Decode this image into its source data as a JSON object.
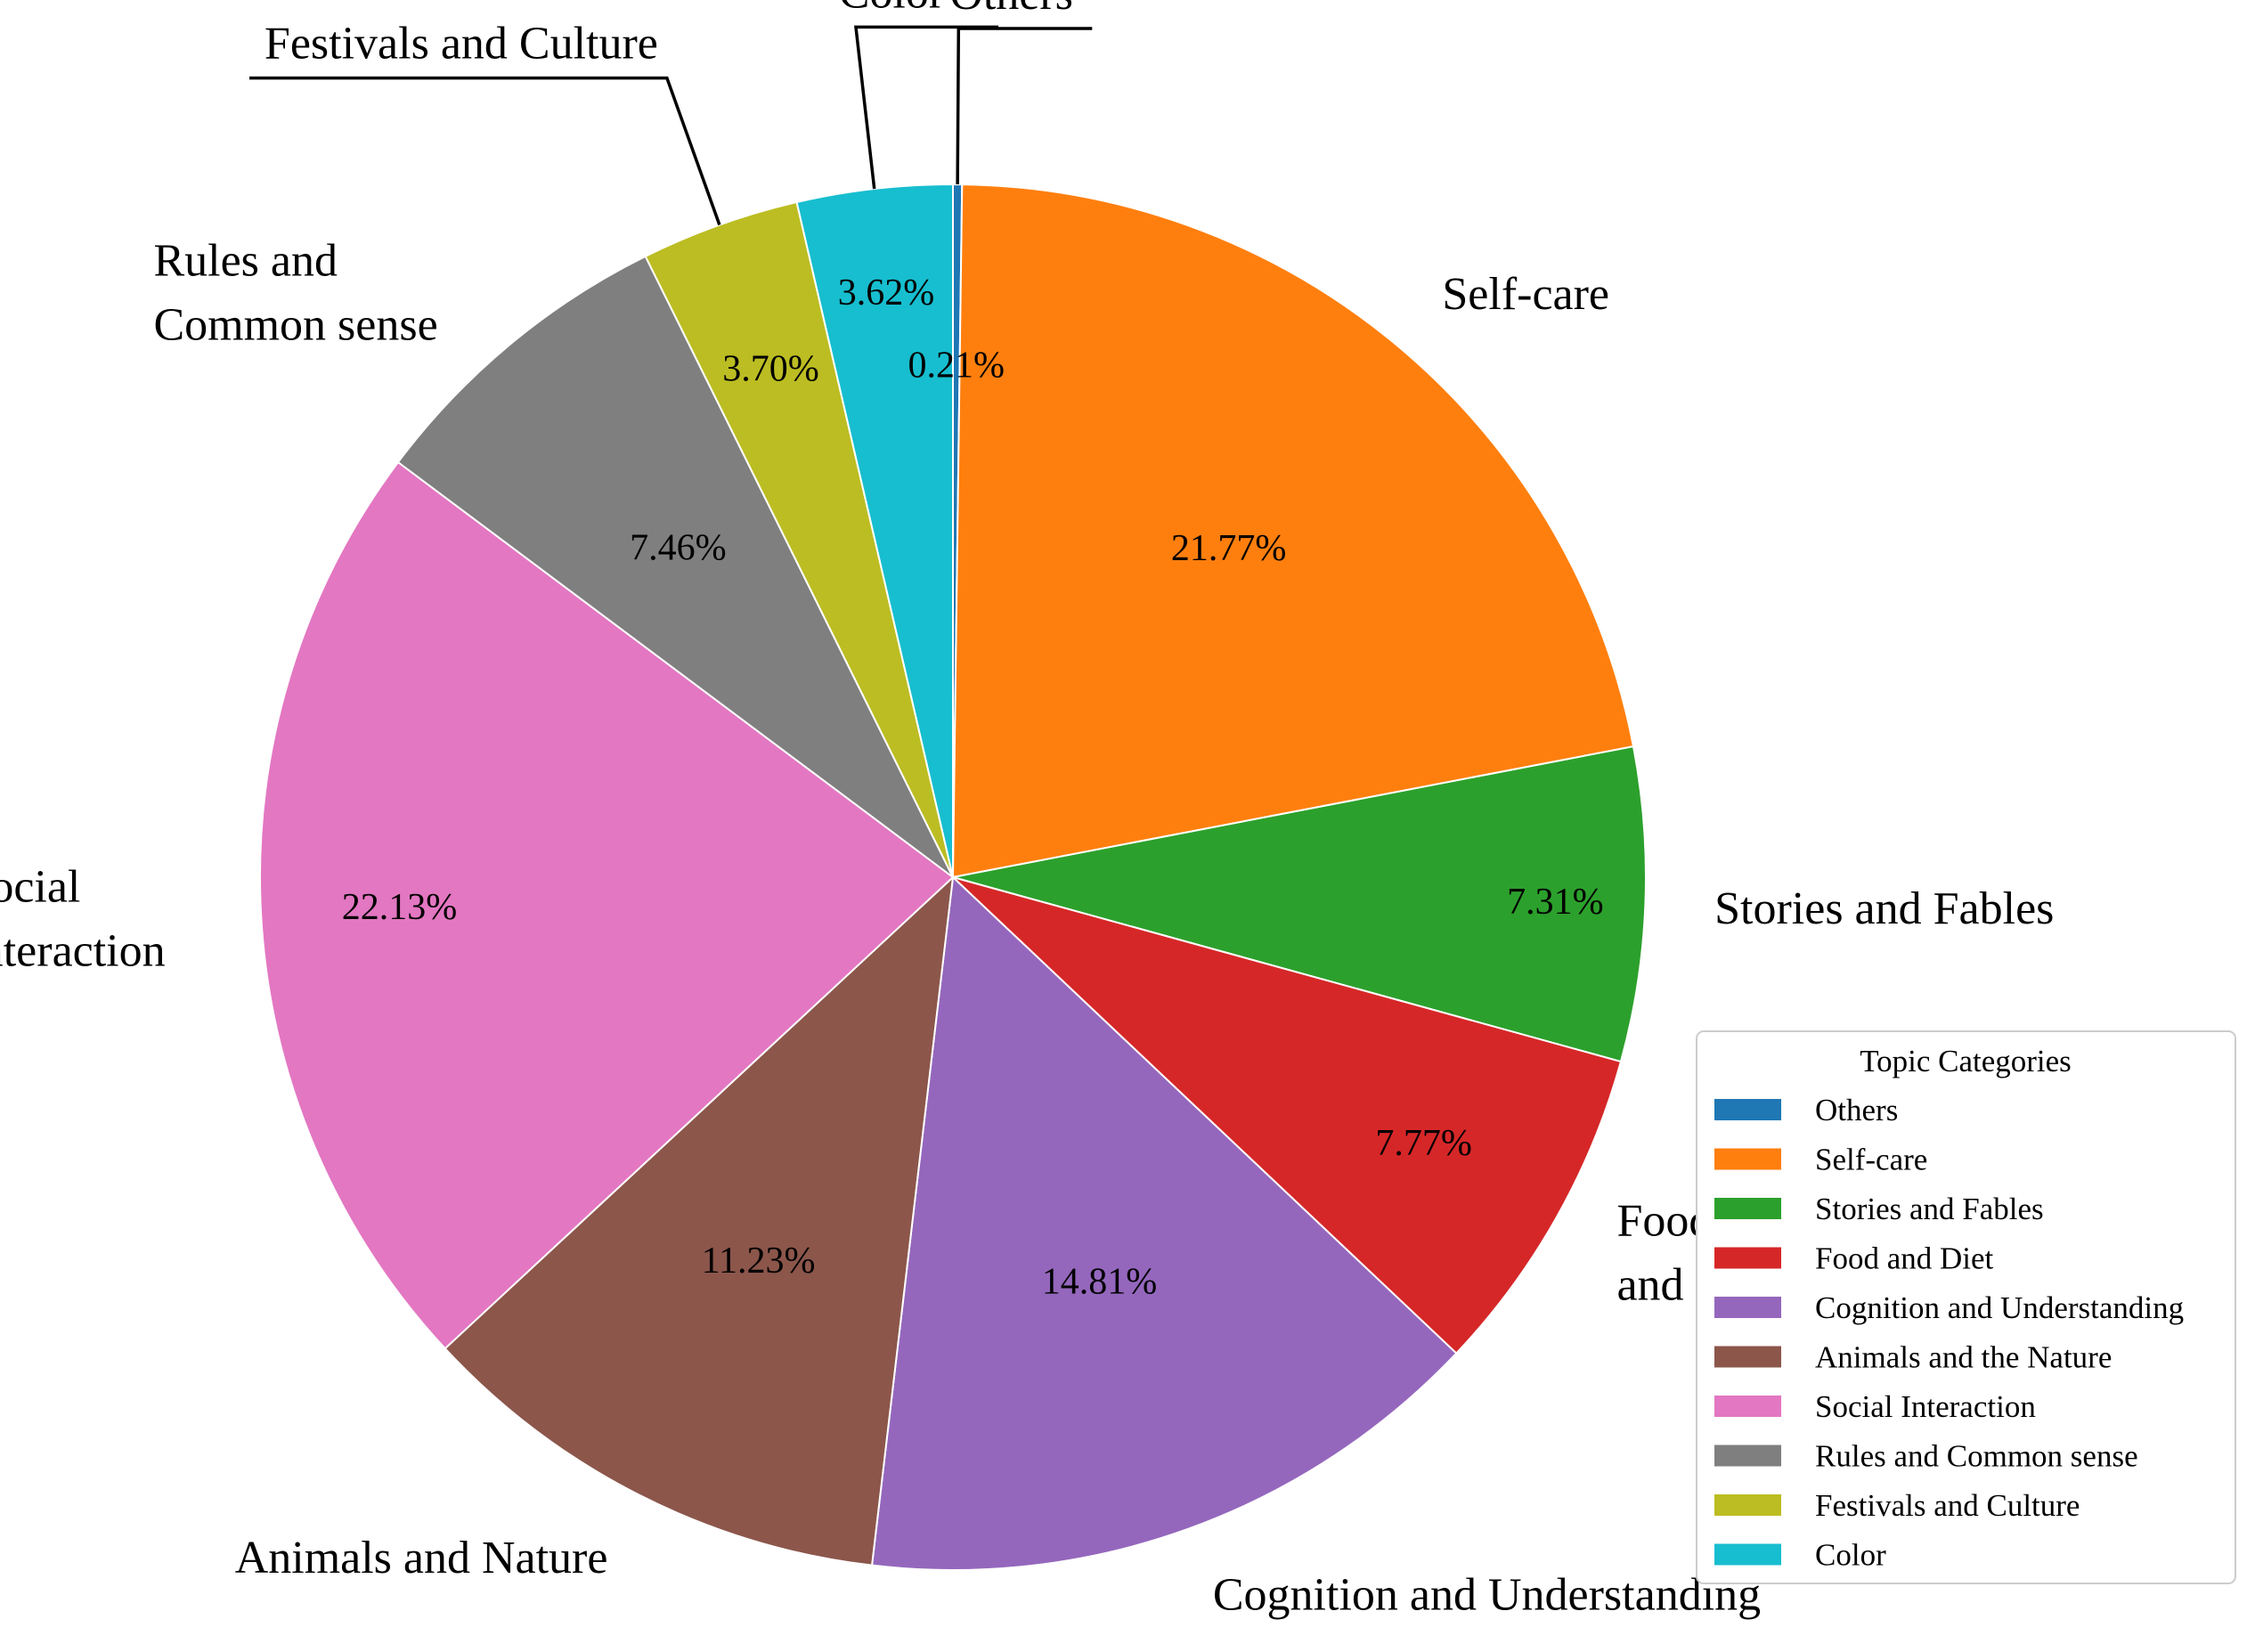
{
  "chart_data": {
    "type": "pie",
    "categories": [
      "Others",
      "Self-care",
      "Stories and Fables",
      "Food and Diet",
      "Cognition and Understanding",
      "Animals and the Nature",
      "Social Interaction",
      "Rules and Common sense",
      "Festivals and Culture",
      "Color"
    ],
    "slice_labels": [
      [
        "Others"
      ],
      [
        "Self-care"
      ],
      [
        "Stories and Fables"
      ],
      [
        "Food",
        "and Diet"
      ],
      [
        "Cognition and Understanding"
      ],
      [
        "Animals and Nature"
      ],
      [
        "Social",
        "Interaction"
      ],
      [
        "Rules and",
        "Common sense"
      ],
      [
        "Festivals and Culture"
      ],
      [
        "Color"
      ]
    ],
    "values": [
      0.21,
      21.77,
      7.31,
      7.77,
      14.81,
      11.23,
      22.13,
      7.46,
      3.7,
      3.62
    ],
    "value_labels": [
      "0.21%",
      "21.77%",
      "7.31%",
      "7.77%",
      "14.81%",
      "11.23%",
      "22.13%",
      "7.46%",
      "3.70%",
      "3.62%"
    ],
    "colors": [
      "#1f77b4",
      "#ff7f0e",
      "#2ca02c",
      "#d62728",
      "#9467bd",
      "#8c564b",
      "#e377c2",
      "#7f7f7f",
      "#bcbd22",
      "#17becf"
    ],
    "direction": "clockwise",
    "start": "top",
    "legend": {
      "title": "Topic Categories",
      "placement": "lower-right"
    }
  }
}
